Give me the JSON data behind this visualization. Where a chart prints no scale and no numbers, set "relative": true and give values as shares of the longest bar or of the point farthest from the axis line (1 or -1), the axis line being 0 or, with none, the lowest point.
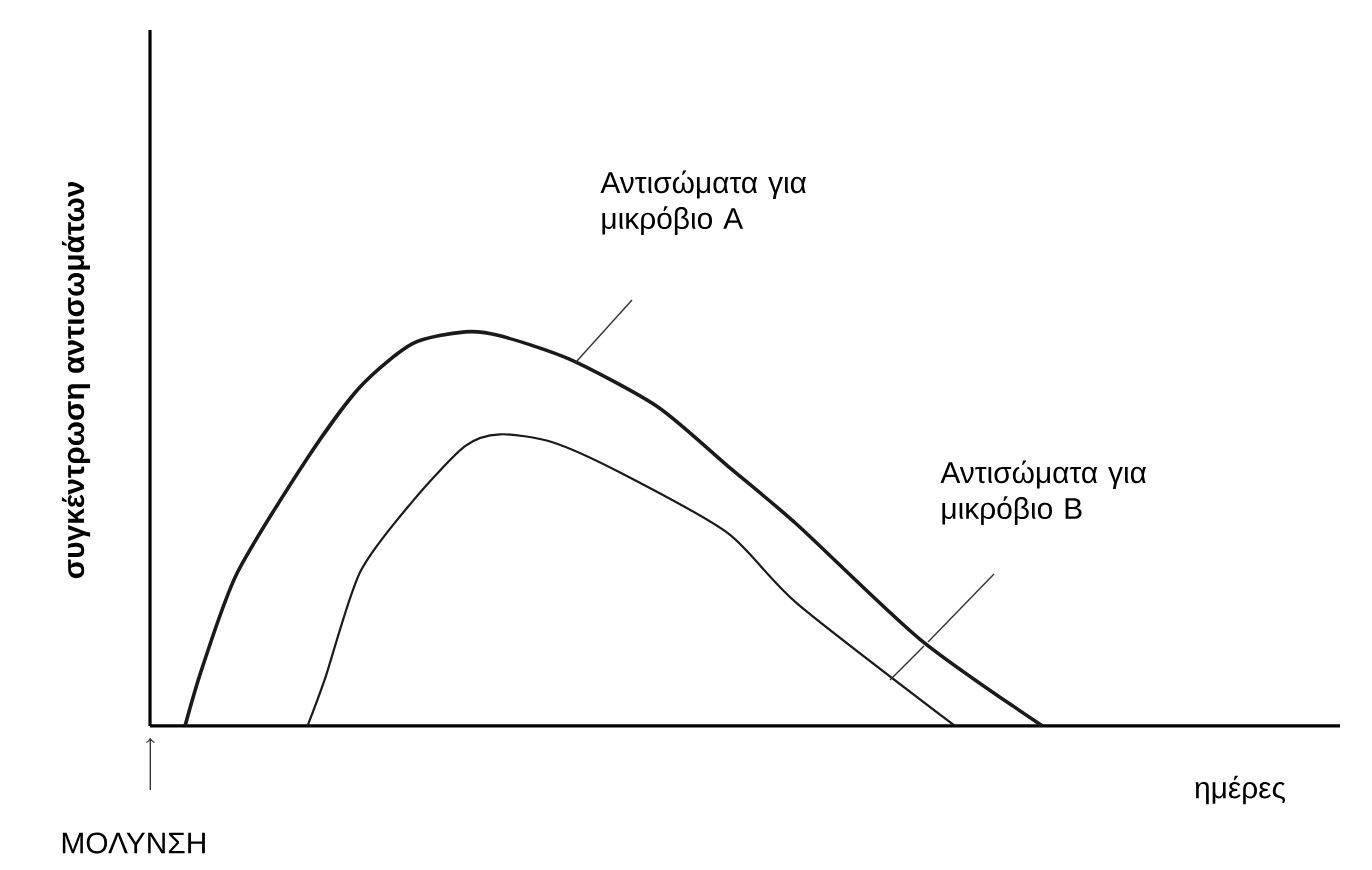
{
  "chart_data": {
    "type": "line",
    "relative": true,
    "xlabel": "ημέρες",
    "ylabel": "συγκέντρωση αντισωμάτων",
    "categories": [
      null,
      null,
      null,
      null,
      null,
      null,
      null,
      null,
      null,
      null,
      null,
      null,
      null,
      null,
      null,
      null,
      null,
      null,
      null,
      null,
      null,
      null,
      null,
      null,
      null,
      null,
      null,
      null,
      null,
      null,
      null,
      null,
      null,
      null,
      null,
      null,
      null,
      null,
      null,
      null,
      null,
      null,
      null,
      null,
      null,
      null,
      null,
      null,
      null,
      null,
      null,
      null,
      null,
      null,
      null,
      null,
      null,
      null,
      null,
      null,
      null,
      null,
      null,
      null,
      null,
      null,
      null,
      null
    ],
    "series": [
      {
        "color": "#1a1a1a",
        "values": [
          null,
          null,
          0,
          0.15,
          null,
          0.39,
          null,
          null,
          null,
          0.68,
          null,
          null,
          0.86,
          null,
          null,
          0.97,
          null,
          null,
          1.0,
          null,
          0.99,
          null,
          null,
          null,
          0.93,
          null,
          null,
          null,
          null,
          0.81,
          null,
          null,
          null,
          0.66,
          null,
          null,
          null,
          0.51,
          null,
          null,
          null,
          null,
          null,
          null,
          0.22,
          null,
          null,
          null,
          null,
          null,
          null,
          0,
          null,
          null,
          null,
          null,
          null,
          null,
          null,
          null,
          null,
          null,
          null,
          null,
          null,
          null,
          null,
          null
        ]
      },
      {
        "color": "#1a1a1a",
        "values": [
          null,
          null,
          null,
          null,
          null,
          null,
          null,
          null,
          null,
          0,
          0.12,
          null,
          0.39,
          null,
          null,
          0.57,
          null,
          null,
          0.71,
          null,
          0.74,
          null,
          null,
          0.72,
          null,
          null,
          null,
          0.64,
          null,
          null,
          null,
          null,
          null,
          0.49,
          null,
          null,
          null,
          0.31,
          null,
          null,
          null,
          null,
          null,
          null,
          null,
          null,
          0,
          null,
          null,
          null,
          null,
          null,
          null,
          null,
          null,
          null,
          null,
          null,
          null,
          null,
          null,
          null,
          null,
          null,
          null,
          null,
          null,
          null
        ]
      }
    ],
    "annotations": [
      "Αντισώματα για μικρόβιο A",
      "Αντισώματα για μικρόβιο B",
      "ΜΟΛΥΝΣΗ"
    ]
  }
}
